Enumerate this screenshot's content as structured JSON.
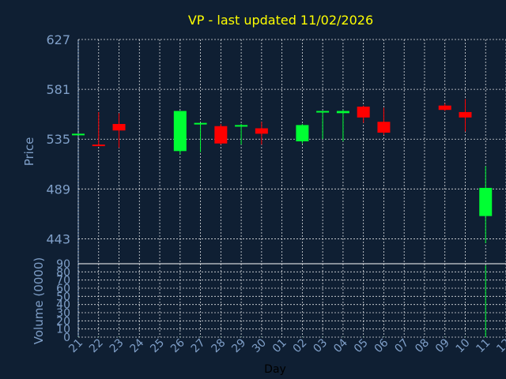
{
  "chart_data": [
    {
      "type": "candlestick",
      "title": "VP - last updated 11/02/2026",
      "xlabel": "Day",
      "ylabel": "Price",
      "ylim": [
        420,
        627
      ],
      "yticks": [
        627,
        581,
        535,
        489,
        443
      ],
      "grid": true,
      "colors": {
        "up": "#00ff33",
        "down": "#ff0000",
        "background": "#0f1f33",
        "title": "#ffff00",
        "axis_text": "#7f9fc8",
        "grid": "#ffffff"
      },
      "candles": [
        {
          "day": "21",
          "open": 539,
          "high": 540,
          "low": 539,
          "close": 540
        },
        {
          "day": "22",
          "open": 530,
          "high": 560,
          "low": 529,
          "close": 529
        },
        {
          "day": "23",
          "open": 549,
          "high": 559,
          "low": 527,
          "close": 543
        },
        {
          "day": "26",
          "open": 524,
          "high": 561,
          "low": 521,
          "close": 561
        },
        {
          "day": "27",
          "open": 549,
          "high": 550,
          "low": 523,
          "close": 550
        },
        {
          "day": "28",
          "open": 547,
          "high": 549,
          "low": 530,
          "close": 531
        },
        {
          "day": "29",
          "open": 547,
          "high": 549,
          "low": 530,
          "close": 548
        },
        {
          "day": "30",
          "open": 545,
          "high": 551,
          "low": 530,
          "close": 540
        },
        {
          "day": "02",
          "open": 533,
          "high": 549,
          "low": 531,
          "close": 548
        },
        {
          "day": "03",
          "open": 560,
          "high": 561,
          "low": 535,
          "close": 561
        },
        {
          "day": "04",
          "open": 559,
          "high": 562,
          "low": 533,
          "close": 561
        },
        {
          "day": "05",
          "open": 565,
          "high": 566,
          "low": 550,
          "close": 555
        },
        {
          "day": "06",
          "open": 551,
          "high": 564,
          "low": 539,
          "close": 541
        },
        {
          "day": "09",
          "open": 566,
          "high": 568,
          "low": 561,
          "close": 562
        },
        {
          "day": "10",
          "open": 560,
          "high": 572,
          "low": 542,
          "close": 555
        },
        {
          "day": "11",
          "open": 464,
          "high": 510,
          "low": 439,
          "close": 490
        }
      ]
    },
    {
      "type": "bar",
      "xlabel": "Day",
      "ylabel": "Volume (0000)",
      "ylim": [
        0,
        90
      ],
      "yticks": [
        90,
        80,
        70,
        60,
        50,
        40,
        30,
        20,
        10,
        0
      ],
      "categories": [
        "21",
        "22",
        "23",
        "24",
        "25",
        "26",
        "27",
        "28",
        "29",
        "30",
        "01",
        "02",
        "03",
        "04",
        "05",
        "06",
        "07",
        "08",
        "09",
        "10",
        "11",
        "12"
      ],
      "values": [
        0.2,
        0.2,
        0.2,
        null,
        null,
        0.2,
        0.2,
        0.2,
        0.2,
        0.2,
        null,
        0.2,
        0.2,
        0.2,
        0.2,
        0.2,
        null,
        null,
        0.2,
        0.2,
        88,
        null
      ]
    }
  ]
}
